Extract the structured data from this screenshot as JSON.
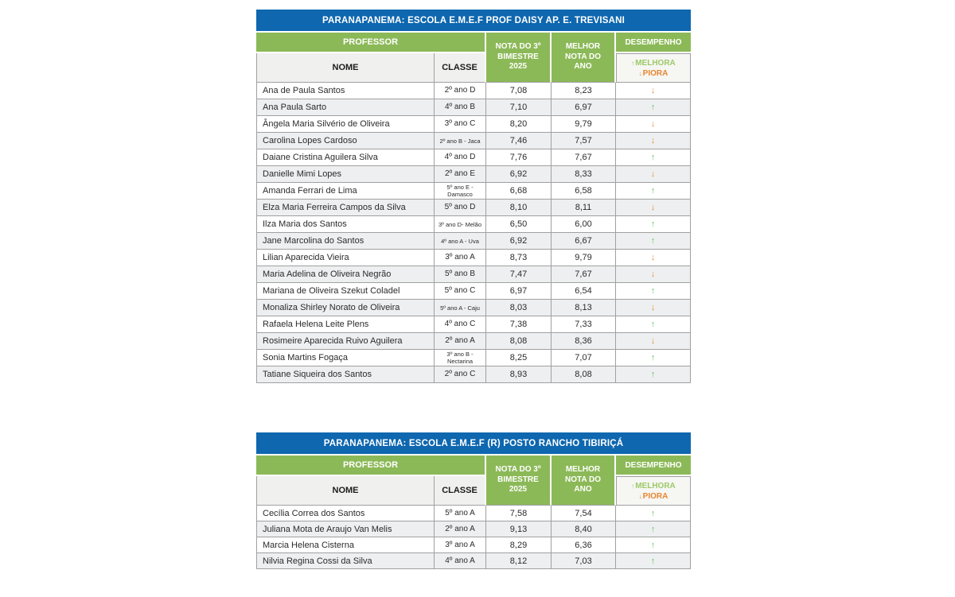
{
  "colors": {
    "blue": "#0e67af",
    "green": "#8cb958",
    "border": "#a0a0a0",
    "melhora_green": "#9cc968",
    "piora_orange": "#e8862f",
    "up_green": "#6cc26b",
    "down_orange": "#e8913f"
  },
  "icons": {
    "up_arrow_char": "↑",
    "down_arrow_char": "↓"
  },
  "tables": [
    {
      "title": "PARANAPANEMA: ESCOLA E.M.E.F PROF DAISY AP. E. TREVISANI",
      "headers": {
        "professor": "PROFESSOR",
        "nome": "NOME",
        "classe": "CLASSE",
        "nota_bimestre": "NOTA DO 3º BIMESTRE 2025",
        "melhor_nota": "MELHOR NOTA DO ANO",
        "desempenho": "DESEMPENHO",
        "melhora": "MELHORA",
        "piora": "PIORA"
      },
      "rows": [
        {
          "nome": "Ana de Paula Santos",
          "classe": "2º ano D",
          "nota": "7,08",
          "melhor": "8,23",
          "trend": "down"
        },
        {
          "nome": "Ana Paula Sarto",
          "classe": "4º ano B",
          "nota": "7,10",
          "melhor": "6,97",
          "trend": "up"
        },
        {
          "nome": "Ângela Maria Silvério de Oliveira",
          "classe": "3º ano C",
          "nota": "8,20",
          "melhor": "9,79",
          "trend": "down"
        },
        {
          "nome": "Carolina Lopes Cardoso",
          "classe": "2º ano B - Jaca",
          "nota": "7,46",
          "melhor": "7,57",
          "trend": "down"
        },
        {
          "nome": "Daiane Cristina Aguilera Silva",
          "classe": "4º ano D",
          "nota": "7,76",
          "melhor": "7,67",
          "trend": "up"
        },
        {
          "nome": "Danielle Mimi Lopes",
          "classe": "2º ano E",
          "nota": "6,92",
          "melhor": "8,33",
          "trend": "down"
        },
        {
          "nome": "Amanda Ferrari de Lima",
          "classe": "5º ano E - Damasco",
          "nota": "6,68",
          "melhor": "6,58",
          "trend": "up"
        },
        {
          "nome": "Elza Maria Ferreira Campos da Silva",
          "classe": "5º ano D",
          "nota": "8,10",
          "melhor": "8,11",
          "trend": "down"
        },
        {
          "nome": "Ilza Maria dos Santos",
          "classe": "3º ano D- Melão",
          "nota": "6,50",
          "melhor": "6,00",
          "trend": "up"
        },
        {
          "nome": "Jane Marcolina do Santos",
          "classe": "4º ano A - Uva",
          "nota": "6,92",
          "melhor": "6,67",
          "trend": "up"
        },
        {
          "nome": "Lilian Aparecida Vieira",
          "classe": "3º ano A",
          "nota": "8,73",
          "melhor": "9,79",
          "trend": "down"
        },
        {
          "nome": "Maria Adelina de Oliveira Negrão",
          "classe": "5º ano B",
          "nota": "7,47",
          "melhor": "7,67",
          "trend": "down"
        },
        {
          "nome": "Mariana de Oliveira Szekut Coladel",
          "classe": "5º ano C",
          "nota": "6,97",
          "melhor": "6,54",
          "trend": "up"
        },
        {
          "nome": "Monaliza Shirley Norato de Oliveira",
          "classe": "5º ano A - Caju",
          "nota": "8,03",
          "melhor": "8,13",
          "trend": "down"
        },
        {
          "nome": "Rafaela Helena Leite Plens",
          "classe": "4º ano C",
          "nota": "7,38",
          "melhor": "7,33",
          "trend": "up"
        },
        {
          "nome": "Rosimeire Aparecida Ruivo Aguilera",
          "classe": "2º ano A",
          "nota": "8,08",
          "melhor": "8,36",
          "trend": "down"
        },
        {
          "nome": "Sonia Martins Fogaça",
          "classe": "3º ano B - Nectarina",
          "nota": "8,25",
          "melhor": "7,07",
          "trend": "up"
        },
        {
          "nome": "Tatiane Siqueira dos Santos",
          "classe": "2º ano C",
          "nota": "8,93",
          "melhor": "8,08",
          "trend": "up"
        }
      ]
    },
    {
      "title": "PARANAPANEMA: ESCOLA E.M.E.F (R)  POSTO RANCHO TIBIRIÇÁ",
      "headers": {
        "professor": "PROFESSOR",
        "nome": "NOME",
        "classe": "CLASSE",
        "nota_bimestre": "NOTA DO 3º BIMESTRE 2025",
        "melhor_nota": "MELHOR NOTA DO ANO",
        "desempenho": "DESEMPENHO",
        "melhora": "MELHORA",
        "piora": "PIORA"
      },
      "rows": [
        {
          "nome": "Cecília Correa dos Santos",
          "classe": "5º ano A",
          "nota": "7,58",
          "melhor": "7,54",
          "trend": "up"
        },
        {
          "nome": "Juliana Mota de Araujo Van Melis",
          "classe": "2º ano A",
          "nota": "9,13",
          "melhor": "8,40",
          "trend": "up"
        },
        {
          "nome": "Marcia Helena Cisterna",
          "classe": "3º ano A",
          "nota": "8,29",
          "melhor": "6,36",
          "trend": "up"
        },
        {
          "nome": "Nilvia Regina Cossi da Silva",
          "classe": "4º ano A",
          "nota": "8,12",
          "melhor": "7,03",
          "trend": "up"
        }
      ]
    }
  ]
}
